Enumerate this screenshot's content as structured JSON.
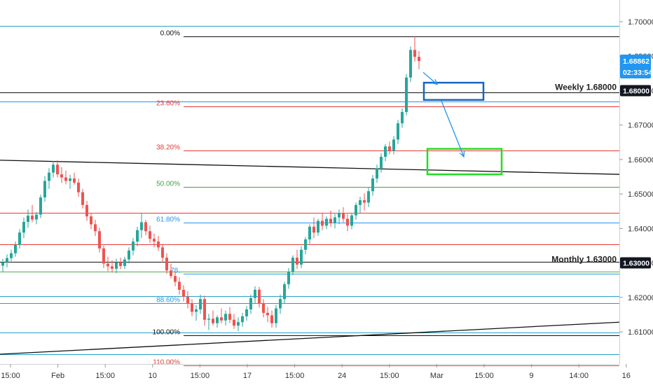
{
  "chart_data": {
    "type": "candlestick",
    "price_axis": {
      "ticks": [
        "1.70000",
        "1.69000",
        "1.68000",
        "1.67000",
        "1.66000",
        "1.65000",
        "1.64000",
        "1.63000",
        "1.62000",
        "1.61000"
      ],
      "range": [
        1.6025,
        1.7055
      ]
    },
    "time_axis": {
      "ticks": [
        "15:00",
        "Feb",
        "15:00",
        "10",
        "15:00",
        "17",
        "15:00",
        "24",
        "15:00",
        "Mar",
        "15:00",
        "9",
        "14:00",
        "16"
      ]
    },
    "current_price": {
      "value": "1.68862",
      "countdown": "02:33:54",
      "color": "#2196f3"
    },
    "price_tags": [
      {
        "label": "1.68000",
        "value": 1.68,
        "style": "dark"
      },
      {
        "label": "1.63000",
        "value": 1.63,
        "style": "dark"
      }
    ],
    "key_levels": [
      {
        "text": "Weekly 1.68000",
        "value": 1.68
      },
      {
        "text": "Monthly 1.63000",
        "value": 1.63
      }
    ],
    "fibonacci": [
      {
        "label": "0.00%",
        "value": 1.6958,
        "color": "#111111"
      },
      {
        "label": "23.60%",
        "value": 1.6755,
        "color": "#e53935"
      },
      {
        "label": "38.20%",
        "value": 1.6627,
        "color": "#e53935"
      },
      {
        "label": "50.00%",
        "value": 1.6521,
        "color": "#43a047"
      },
      {
        "label": "61.80%",
        "value": 1.6417,
        "color": "#2196f3"
      },
      {
        "label": "78.",
        "value": 1.6268,
        "color": "#2196f3"
      },
      {
        "label": "88.60%",
        "value": 1.6183,
        "color": "#2196f3"
      },
      {
        "label": "100.00%",
        "value": 1.609,
        "color": "#111111"
      },
      {
        "label": "110.00%",
        "value": 1.6003,
        "color": "#e53935"
      }
    ],
    "horizontal_lines": [
      {
        "value": 1.6988,
        "color": "#26a3c6"
      },
      {
        "value": 1.6795,
        "color": "#111111"
      },
      {
        "value": 1.6768,
        "color": "#2196f3"
      },
      {
        "value": 1.6445,
        "color": "#e53935"
      },
      {
        "value": 1.6353,
        "color": "#e53935"
      },
      {
        "value": 1.6303,
        "color": "#111111"
      },
      {
        "value": 1.6275,
        "color": "#4caf50"
      },
      {
        "value": 1.6203,
        "color": "#26a3c6"
      },
      {
        "value": 1.6183,
        "color": "#26a3c6"
      },
      {
        "value": 1.6098,
        "color": "#26a3c6"
      },
      {
        "value": 1.6035,
        "color": "#26a3c6"
      }
    ],
    "trendlines": [
      {
        "from": [
          0,
          1.6598
        ],
        "to": [
          884,
          1.6557
        ],
        "color": "#111111"
      },
      {
        "from": [
          0,
          1.6035
        ],
        "to": [
          884,
          1.6128
        ],
        "color": "#111111"
      }
    ],
    "zones": [
      {
        "name": "blue-box",
        "x_range": [
          605,
          690
        ],
        "price_range": [
          1.6823,
          1.6773
        ],
        "color": "#1565c0"
      },
      {
        "name": "green-box",
        "x_range": [
          610,
          716
        ],
        "price_range": [
          1.6631,
          1.6557
        ],
        "color": "#22dd22"
      }
    ],
    "arrows": [
      {
        "from": [
          604,
          1.6853
        ],
        "to": [
          624,
          1.6818
        ]
      },
      {
        "from": [
          630,
          1.677
        ],
        "to": [
          662,
          1.6608
        ]
      }
    ],
    "candles": [
      [
        1.6292,
        1.6312,
        1.6275,
        1.6302
      ],
      [
        1.6302,
        1.6325,
        1.6287,
        1.6314
      ],
      [
        1.6314,
        1.6338,
        1.6301,
        1.6328
      ],
      [
        1.6328,
        1.6362,
        1.6318,
        1.6352
      ],
      [
        1.6352,
        1.6398,
        1.6342,
        1.6388
      ],
      [
        1.6388,
        1.6432,
        1.6372,
        1.6419
      ],
      [
        1.6419,
        1.6455,
        1.6402,
        1.6437
      ],
      [
        1.6437,
        1.6468,
        1.6418,
        1.6426
      ],
      [
        1.6426,
        1.6448,
        1.6412,
        1.644
      ],
      [
        1.644,
        1.6498,
        1.643,
        1.649
      ],
      [
        1.649,
        1.6552,
        1.6478,
        1.6538
      ],
      [
        1.6538,
        1.6575,
        1.6515,
        1.6562
      ],
      [
        1.6562,
        1.6596,
        1.6548,
        1.6585
      ],
      [
        1.6585,
        1.6598,
        1.6548,
        1.6557
      ],
      [
        1.6557,
        1.6578,
        1.6532,
        1.6548
      ],
      [
        1.6548,
        1.6568,
        1.6528,
        1.6538
      ],
      [
        1.6538,
        1.6556,
        1.6515,
        1.6545
      ],
      [
        1.6545,
        1.6562,
        1.6527,
        1.6533
      ],
      [
        1.6533,
        1.6545,
        1.6492,
        1.6505
      ],
      [
        1.6505,
        1.6515,
        1.6458,
        1.6468
      ],
      [
        1.6468,
        1.648,
        1.6422,
        1.6435
      ],
      [
        1.6435,
        1.6445,
        1.6398,
        1.6412
      ],
      [
        1.6412,
        1.6425,
        1.6378,
        1.6392
      ],
      [
        1.6392,
        1.6402,
        1.633,
        1.6342
      ],
      [
        1.6342,
        1.635,
        1.6285,
        1.6298
      ],
      [
        1.6298,
        1.6318,
        1.6276,
        1.629
      ],
      [
        1.629,
        1.6308,
        1.6272,
        1.6283
      ],
      [
        1.6283,
        1.6312,
        1.627,
        1.6302
      ],
      [
        1.6302,
        1.6315,
        1.6282,
        1.6291
      ],
      [
        1.6291,
        1.6318,
        1.6282,
        1.631
      ],
      [
        1.631,
        1.6345,
        1.6298,
        1.6336
      ],
      [
        1.6336,
        1.6372,
        1.6322,
        1.6362
      ],
      [
        1.6362,
        1.6405,
        1.6348,
        1.6395
      ],
      [
        1.6395,
        1.6445,
        1.6372,
        1.6418
      ],
      [
        1.6418,
        1.6425,
        1.638,
        1.6392
      ],
      [
        1.6392,
        1.6408,
        1.6358,
        1.637
      ],
      [
        1.637,
        1.6385,
        1.6345,
        1.6362
      ],
      [
        1.6362,
        1.6378,
        1.6335,
        1.6345
      ],
      [
        1.6345,
        1.6355,
        1.6302,
        1.6315
      ],
      [
        1.6315,
        1.6328,
        1.6268,
        1.6278
      ],
      [
        1.6278,
        1.6298,
        1.6255,
        1.6262
      ],
      [
        1.6262,
        1.6275,
        1.6232,
        1.6245
      ],
      [
        1.6245,
        1.6258,
        1.6208,
        1.6222
      ],
      [
        1.6222,
        1.6235,
        1.6188,
        1.6202
      ],
      [
        1.6202,
        1.6218,
        1.6168,
        1.6182
      ],
      [
        1.6182,
        1.6195,
        1.6145,
        1.6158
      ],
      [
        1.6158,
        1.6178,
        1.6132,
        1.6165
      ],
      [
        1.6165,
        1.6208,
        1.6152,
        1.6195
      ],
      [
        1.6195,
        1.6205,
        1.6118,
        1.6135
      ],
      [
        1.6135,
        1.6152,
        1.6105,
        1.6138
      ],
      [
        1.6138,
        1.6162,
        1.6118,
        1.6125
      ],
      [
        1.6125,
        1.6148,
        1.6112,
        1.6142
      ],
      [
        1.6142,
        1.6168,
        1.6125,
        1.6133
      ],
      [
        1.6133,
        1.6162,
        1.6118,
        1.6152
      ],
      [
        1.6152,
        1.6172,
        1.6125,
        1.6135
      ],
      [
        1.6135,
        1.6152,
        1.6108,
        1.6118
      ],
      [
        1.6118,
        1.6142,
        1.6102,
        1.6128
      ],
      [
        1.6128,
        1.6155,
        1.6115,
        1.6145
      ],
      [
        1.6145,
        1.6175,
        1.6132,
        1.6165
      ],
      [
        1.6165,
        1.6208,
        1.6152,
        1.6198
      ],
      [
        1.6198,
        1.6232,
        1.6182,
        1.6222
      ],
      [
        1.6222,
        1.623,
        1.617,
        1.6182
      ],
      [
        1.6182,
        1.6195,
        1.6142,
        1.6155
      ],
      [
        1.6155,
        1.6172,
        1.6128,
        1.6148
      ],
      [
        1.6148,
        1.6162,
        1.6112,
        1.6125
      ],
      [
        1.6125,
        1.6178,
        1.6112,
        1.6168
      ],
      [
        1.6168,
        1.6208,
        1.6152,
        1.6195
      ],
      [
        1.6195,
        1.6245,
        1.6182,
        1.6238
      ],
      [
        1.6238,
        1.6285,
        1.6225,
        1.6275
      ],
      [
        1.6275,
        1.6322,
        1.6265,
        1.6315
      ],
      [
        1.6315,
        1.6338,
        1.6282,
        1.6295
      ],
      [
        1.6295,
        1.6348,
        1.6285,
        1.6338
      ],
      [
        1.6338,
        1.6375,
        1.6325,
        1.6368
      ],
      [
        1.6368,
        1.6412,
        1.6355,
        1.6405
      ],
      [
        1.6405,
        1.6432,
        1.6372,
        1.6388
      ],
      [
        1.6388,
        1.6428,
        1.6378,
        1.6422
      ],
      [
        1.6422,
        1.6445,
        1.6395,
        1.6408
      ],
      [
        1.6408,
        1.6435,
        1.6398,
        1.6428
      ],
      [
        1.6428,
        1.6452,
        1.6405,
        1.6415
      ],
      [
        1.6415,
        1.6442,
        1.64,
        1.6432
      ],
      [
        1.6432,
        1.6455,
        1.6412,
        1.6445
      ],
      [
        1.6445,
        1.6462,
        1.6418,
        1.6428
      ],
      [
        1.6428,
        1.6442,
        1.6392,
        1.6408
      ],
      [
        1.6408,
        1.6445,
        1.6398,
        1.6438
      ],
      [
        1.6438,
        1.6475,
        1.6425,
        1.6468
      ],
      [
        1.6468,
        1.6492,
        1.6445,
        1.6482
      ],
      [
        1.6482,
        1.6502,
        1.6452,
        1.6475
      ],
      [
        1.6475,
        1.6518,
        1.6462,
        1.6508
      ],
      [
        1.6508,
        1.6555,
        1.6495,
        1.6545
      ],
      [
        1.6545,
        1.6585,
        1.6532,
        1.6575
      ],
      [
        1.6575,
        1.6618,
        1.6562,
        1.6608
      ],
      [
        1.6608,
        1.6645,
        1.6595,
        1.6638
      ],
      [
        1.6638,
        1.6652,
        1.6615,
        1.6625
      ],
      [
        1.6625,
        1.6668,
        1.6615,
        1.6658
      ],
      [
        1.6658,
        1.6715,
        1.6645,
        1.6705
      ],
      [
        1.6705,
        1.6748,
        1.6692,
        1.6738
      ],
      [
        1.6738,
        1.6848,
        1.6728,
        1.6838
      ],
      [
        1.6838,
        1.6928,
        1.6825,
        1.6918
      ],
      [
        1.6918,
        1.6958,
        1.6885,
        1.6898
      ],
      [
        1.6898,
        1.6915,
        1.6862,
        1.6886
      ]
    ]
  }
}
